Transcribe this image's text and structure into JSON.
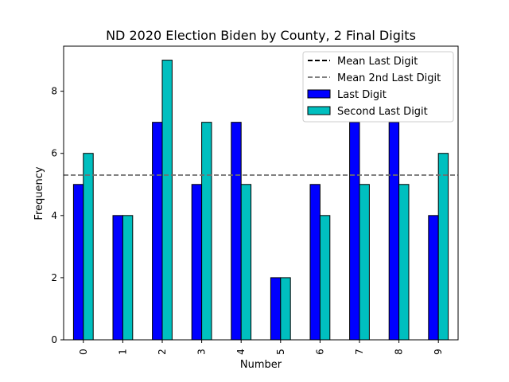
{
  "chart_data": {
    "type": "bar",
    "title": "ND 2020 Election Biden by County, 2 Final Digits",
    "xlabel": "Number",
    "ylabel": "Frequency",
    "categories": [
      "0",
      "1",
      "2",
      "3",
      "4",
      "5",
      "6",
      "7",
      "8",
      "9"
    ],
    "ylim": [
      0,
      9.45
    ],
    "yticks": [
      "0",
      "2",
      "4",
      "6",
      "8"
    ],
    "series": [
      {
        "name": "Last Digit",
        "color": "#0000ff",
        "values": [
          5,
          4,
          7,
          5,
          7,
          2,
          5,
          7,
          7,
          4
        ]
      },
      {
        "name": "Second Last Digit",
        "color": "#00bfbf",
        "values": [
          6,
          4,
          9,
          7,
          5,
          2,
          4,
          5,
          5,
          6
        ]
      }
    ],
    "reference_lines": [
      {
        "name": "Mean Last Digit",
        "value": 5.3,
        "color": "#000000",
        "style": "dashed"
      },
      {
        "name": "Mean 2nd Last Digit",
        "value": 5.3,
        "color": "#808080",
        "style": "dashed"
      }
    ],
    "legend_position": "top-right",
    "grid": false
  }
}
